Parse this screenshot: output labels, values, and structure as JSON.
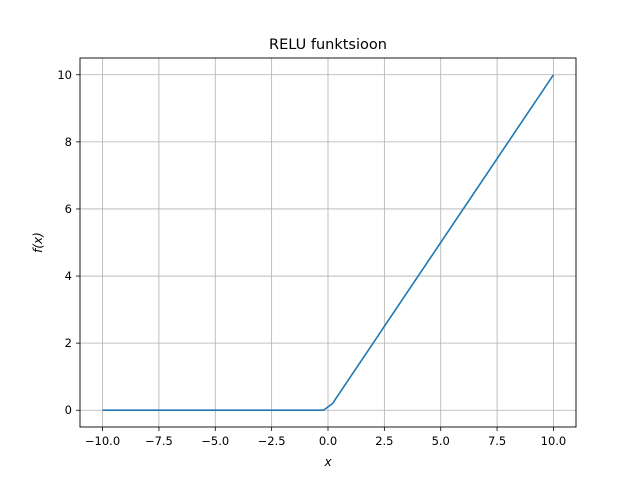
{
  "chart_data": {
    "type": "line",
    "title": "RELU funktsioon",
    "xlabel": "x",
    "ylabel": "f(x)",
    "xlim": [
      -11,
      11
    ],
    "ylim": [
      -0.5,
      10.5
    ],
    "xticks": [
      -10,
      -7.5,
      -5,
      -2.5,
      0,
      2.5,
      5,
      7.5,
      10
    ],
    "xtick_labels": [
      "−10.0",
      "−7.5",
      "−5.0",
      "−2.5",
      "0.0",
      "2.5",
      "5.0",
      "7.5",
      "10.0"
    ],
    "yticks": [
      0,
      2,
      4,
      6,
      8,
      10
    ],
    "ytick_labels": [
      "0",
      "2",
      "4",
      "6",
      "8",
      "10"
    ],
    "grid": true,
    "series": [
      {
        "color": "#1f77b4",
        "x": [
          -10,
          -0.2,
          0.2,
          10
        ],
        "y": [
          0,
          0,
          0.2,
          10
        ]
      }
    ]
  }
}
